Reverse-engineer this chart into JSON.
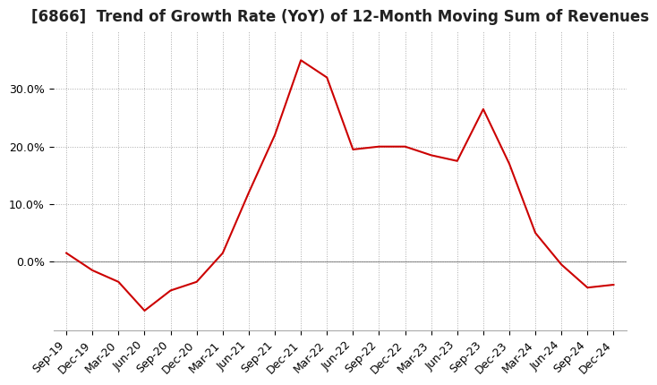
{
  "title": "[6866]  Trend of Growth Rate (YoY) of 12-Month Moving Sum of Revenues",
  "x_labels": [
    "Sep-19",
    "Dec-19",
    "Mar-20",
    "Jun-20",
    "Sep-20",
    "Dec-20",
    "Mar-21",
    "Jun-21",
    "Sep-21",
    "Dec-21",
    "Mar-22",
    "Jun-22",
    "Sep-22",
    "Dec-22",
    "Mar-23",
    "Jun-23",
    "Sep-23",
    "Dec-23",
    "Mar-24",
    "Jun-24",
    "Sep-24",
    "Dec-24"
  ],
  "y_values": [
    1.5,
    -1.5,
    -3.5,
    -8.5,
    -5.0,
    -3.5,
    1.5,
    12.0,
    22.0,
    35.0,
    32.0,
    19.5,
    20.0,
    20.0,
    18.5,
    17.5,
    26.5,
    17.0,
    5.0,
    -0.5,
    -4.5,
    -4.0
  ],
  "line_color": "#cc0000",
  "background_color": "#ffffff",
  "grid_color": "#aaaaaa",
  "zero_line_color": "#888888",
  "ylim": [
    -12,
    40
  ],
  "yticks": [
    0,
    10,
    20,
    30
  ],
  "title_fontsize": 12,
  "tick_fontsize": 9
}
